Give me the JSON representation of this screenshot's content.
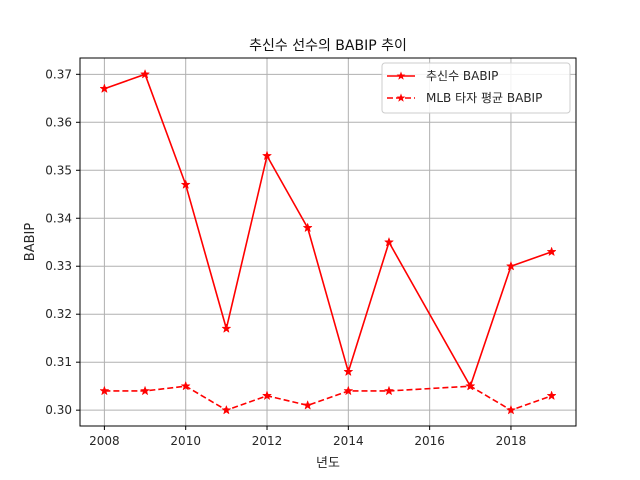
{
  "colors": {
    "series": "#ff0000",
    "grid": "#b0b0b0",
    "axis": "#000000"
  },
  "chart_data": {
    "type": "line",
    "title": "추신수 선수의 BABIP 추이",
    "xlabel": "년도",
    "ylabel": "BABIP",
    "xlim": [
      2007.4,
      2019.6
    ],
    "ylim": [
      0.2967,
      0.3734
    ],
    "xticks": [
      2008,
      2010,
      2012,
      2014,
      2016,
      2018
    ],
    "yticks": [
      0.3,
      0.31,
      0.32,
      0.33,
      0.34,
      0.35,
      0.36,
      0.37
    ],
    "ytick_labels": [
      "0.30",
      "0.31",
      "0.32",
      "0.33",
      "0.34",
      "0.35",
      "0.36",
      "0.37"
    ],
    "grid": true,
    "legend_position": "top-right",
    "marker": "star",
    "series": [
      {
        "name": "추신수 BABIP",
        "line_style": "solid",
        "x": [
          2008,
          2009,
          2010,
          2011,
          2012,
          2013,
          2014,
          2015,
          2017,
          2018,
          2019
        ],
        "y": [
          0.367,
          0.37,
          0.347,
          0.317,
          0.353,
          0.338,
          0.308,
          0.335,
          0.305,
          0.33,
          0.333
        ]
      },
      {
        "name": "MLB 타자 평균 BABIP",
        "line_style": "dashed",
        "x": [
          2008,
          2009,
          2010,
          2011,
          2012,
          2013,
          2014,
          2015,
          2017,
          2018,
          2019
        ],
        "y": [
          0.304,
          0.304,
          0.305,
          0.3,
          0.303,
          0.301,
          0.304,
          0.304,
          0.305,
          0.3,
          0.303
        ]
      }
    ]
  }
}
